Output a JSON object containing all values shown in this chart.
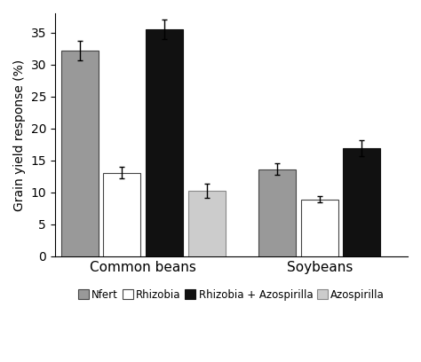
{
  "groups": [
    "Common beans",
    "Soybeans"
  ],
  "categories": [
    "Nfert",
    "Rhizobia",
    "Rhizobia + Azospirilla",
    "Azospirilla"
  ],
  "values": [
    [
      32.2,
      13.1,
      35.5,
      10.3
    ],
    [
      13.6,
      8.9,
      16.9,
      null
    ]
  ],
  "errors": [
    [
      1.5,
      0.9,
      1.5,
      1.1
    ],
    [
      0.9,
      0.5,
      1.2,
      null
    ]
  ],
  "colors": [
    "#999999",
    "#ffffff",
    "#111111",
    "#cccccc"
  ],
  "edge_colors": [
    "#444444",
    "#444444",
    "#111111",
    "#888888"
  ],
  "ylabel": "Grain yield response (%)",
  "ylim": [
    0,
    38
  ],
  "yticks": [
    0,
    5,
    10,
    15,
    20,
    25,
    30,
    35
  ],
  "bar_width": 0.12,
  "group_centers": [
    0.25,
    0.75
  ],
  "legend_labels": [
    "Nfert",
    "Rhizobia",
    "Rhizobia + Azospirilla",
    "Azospirilla"
  ],
  "legend_colors": [
    "#999999",
    "#ffffff",
    "#111111",
    "#cccccc"
  ],
  "legend_edge_colors": [
    "#444444",
    "#444444",
    "#111111",
    "#888888"
  ],
  "background_color": "#ffffff"
}
